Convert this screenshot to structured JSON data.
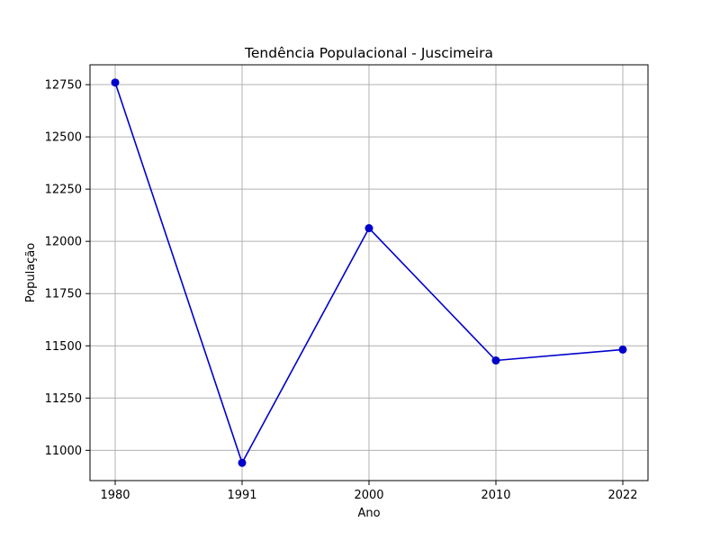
{
  "chart_data": {
    "type": "line",
    "title": "Tendência Populacional - Juscimeira",
    "xlabel": "Ano",
    "ylabel": "População",
    "x": [
      "1980",
      "1991",
      "2000",
      "2010",
      "2022"
    ],
    "series": [
      {
        "values": [
          12760,
          10940,
          12063,
          11430,
          11482
        ],
        "color": "#0000cc",
        "marker": "circle"
      }
    ],
    "yticks": [
      11000,
      11250,
      11500,
      11750,
      12000,
      12250,
      12500,
      12750
    ],
    "ylim": [
      10855,
      12845
    ],
    "grid": true,
    "grid_color": "#b0b0b0"
  }
}
